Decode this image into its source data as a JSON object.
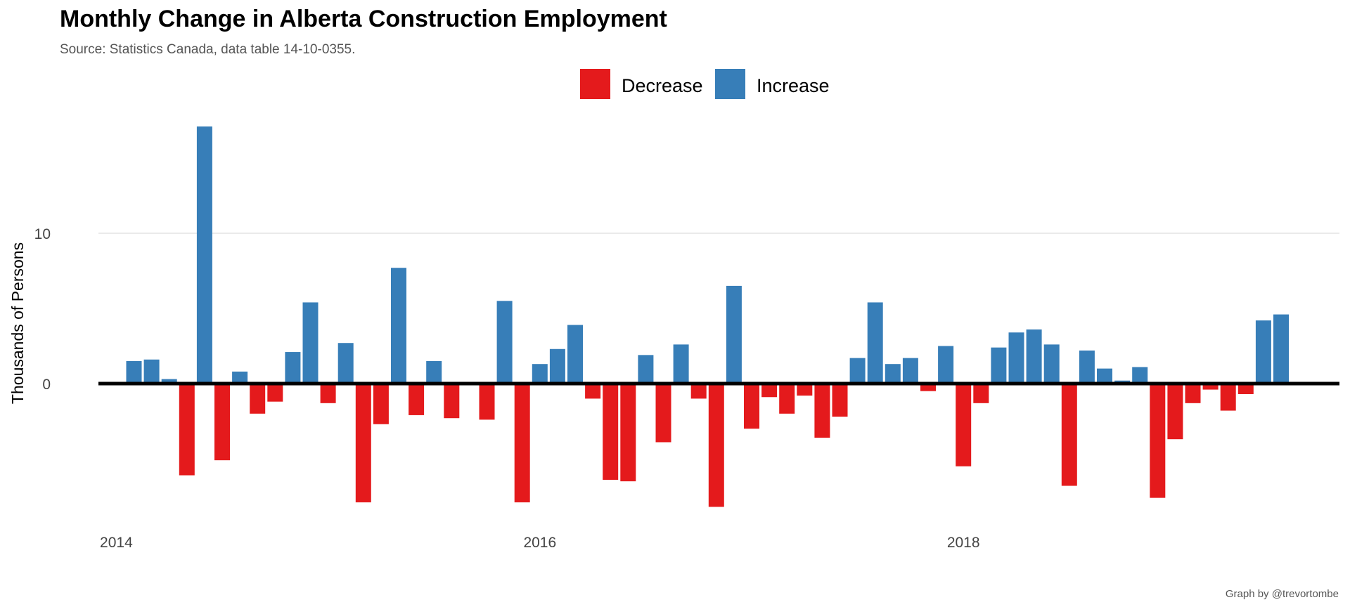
{
  "chart_data": {
    "type": "bar",
    "title": "Monthly Change in Alberta Construction Employment",
    "subtitle": "Source: Statistics Canada, data table 14-10-0355.",
    "caption": "Graph by @trevortombe",
    "ylabel": "Thousands of Persons",
    "xlabel": "",
    "ylim": [
      -9.5,
      17.5
    ],
    "y_ticks": [
      0,
      10
    ],
    "grid": true,
    "legend_position": "top",
    "legend": [
      {
        "label": "Decrease",
        "color": "#E41A1C"
      },
      {
        "label": "Increase",
        "color": "#377EB8"
      }
    ],
    "x_ticks": [
      {
        "label": "2014",
        "date": "2014-01"
      },
      {
        "label": "2016",
        "date": "2016-01"
      },
      {
        "label": "2018",
        "date": "2018-01"
      }
    ],
    "x_start": "2014-01",
    "x_end": "2019-07",
    "data": [
      {
        "date": "2014-02",
        "value": 1.5
      },
      {
        "date": "2014-03",
        "value": 1.6
      },
      {
        "date": "2014-04",
        "value": 0.3
      },
      {
        "date": "2014-05",
        "value": -6.1
      },
      {
        "date": "2014-06",
        "value": 17.1
      },
      {
        "date": "2014-07",
        "value": -5.1
      },
      {
        "date": "2014-08",
        "value": 0.8
      },
      {
        "date": "2014-09",
        "value": -2.0
      },
      {
        "date": "2014-10",
        "value": -1.2
      },
      {
        "date": "2014-11",
        "value": 2.1
      },
      {
        "date": "2014-12",
        "value": 5.4
      },
      {
        "date": "2015-01",
        "value": -1.3
      },
      {
        "date": "2015-02",
        "value": 2.7
      },
      {
        "date": "2015-03",
        "value": -7.9
      },
      {
        "date": "2015-04",
        "value": -2.7
      },
      {
        "date": "2015-05",
        "value": 7.7
      },
      {
        "date": "2015-06",
        "value": -2.1
      },
      {
        "date": "2015-07",
        "value": 1.5
      },
      {
        "date": "2015-08",
        "value": -2.3
      },
      {
        "date": "2015-10",
        "value": -2.4
      },
      {
        "date": "2015-11",
        "value": 5.5
      },
      {
        "date": "2015-12",
        "value": -7.9
      },
      {
        "date": "2016-01",
        "value": 1.3
      },
      {
        "date": "2016-02",
        "value": 2.3
      },
      {
        "date": "2016-03",
        "value": 3.9
      },
      {
        "date": "2016-04",
        "value": -1.0
      },
      {
        "date": "2016-05",
        "value": -6.4
      },
      {
        "date": "2016-06",
        "value": -6.5
      },
      {
        "date": "2016-07",
        "value": 1.9
      },
      {
        "date": "2016-08",
        "value": -3.9
      },
      {
        "date": "2016-09",
        "value": 2.6
      },
      {
        "date": "2016-10",
        "value": -1.0
      },
      {
        "date": "2016-11",
        "value": -8.2
      },
      {
        "date": "2016-12",
        "value": 6.5
      },
      {
        "date": "2017-01",
        "value": -3.0
      },
      {
        "date": "2017-02",
        "value": -0.9
      },
      {
        "date": "2017-03",
        "value": -2.0
      },
      {
        "date": "2017-04",
        "value": -0.8
      },
      {
        "date": "2017-05",
        "value": -3.6
      },
      {
        "date": "2017-06",
        "value": -2.2
      },
      {
        "date": "2017-07",
        "value": 1.7
      },
      {
        "date": "2017-08",
        "value": 5.4
      },
      {
        "date": "2017-09",
        "value": 1.3
      },
      {
        "date": "2017-10",
        "value": 1.7
      },
      {
        "date": "2017-11",
        "value": -0.5
      },
      {
        "date": "2017-12",
        "value": 2.5
      },
      {
        "date": "2018-01",
        "value": -5.5
      },
      {
        "date": "2018-02",
        "value": -1.3
      },
      {
        "date": "2018-03",
        "value": 2.4
      },
      {
        "date": "2018-04",
        "value": 3.4
      },
      {
        "date": "2018-05",
        "value": 3.6
      },
      {
        "date": "2018-06",
        "value": 2.6
      },
      {
        "date": "2018-07",
        "value": -6.8
      },
      {
        "date": "2018-08",
        "value": 2.2
      },
      {
        "date": "2018-09",
        "value": 1.0
      },
      {
        "date": "2018-10",
        "value": 0.2
      },
      {
        "date": "2018-11",
        "value": 1.1
      },
      {
        "date": "2018-12",
        "value": -7.6
      },
      {
        "date": "2019-01",
        "value": -3.7
      },
      {
        "date": "2019-02",
        "value": -1.3
      },
      {
        "date": "2019-03",
        "value": -0.4
      },
      {
        "date": "2019-04",
        "value": -1.8
      },
      {
        "date": "2019-05",
        "value": -0.7
      },
      {
        "date": "2019-06",
        "value": 4.2
      },
      {
        "date": "2019-07",
        "value": 4.6
      }
    ]
  }
}
